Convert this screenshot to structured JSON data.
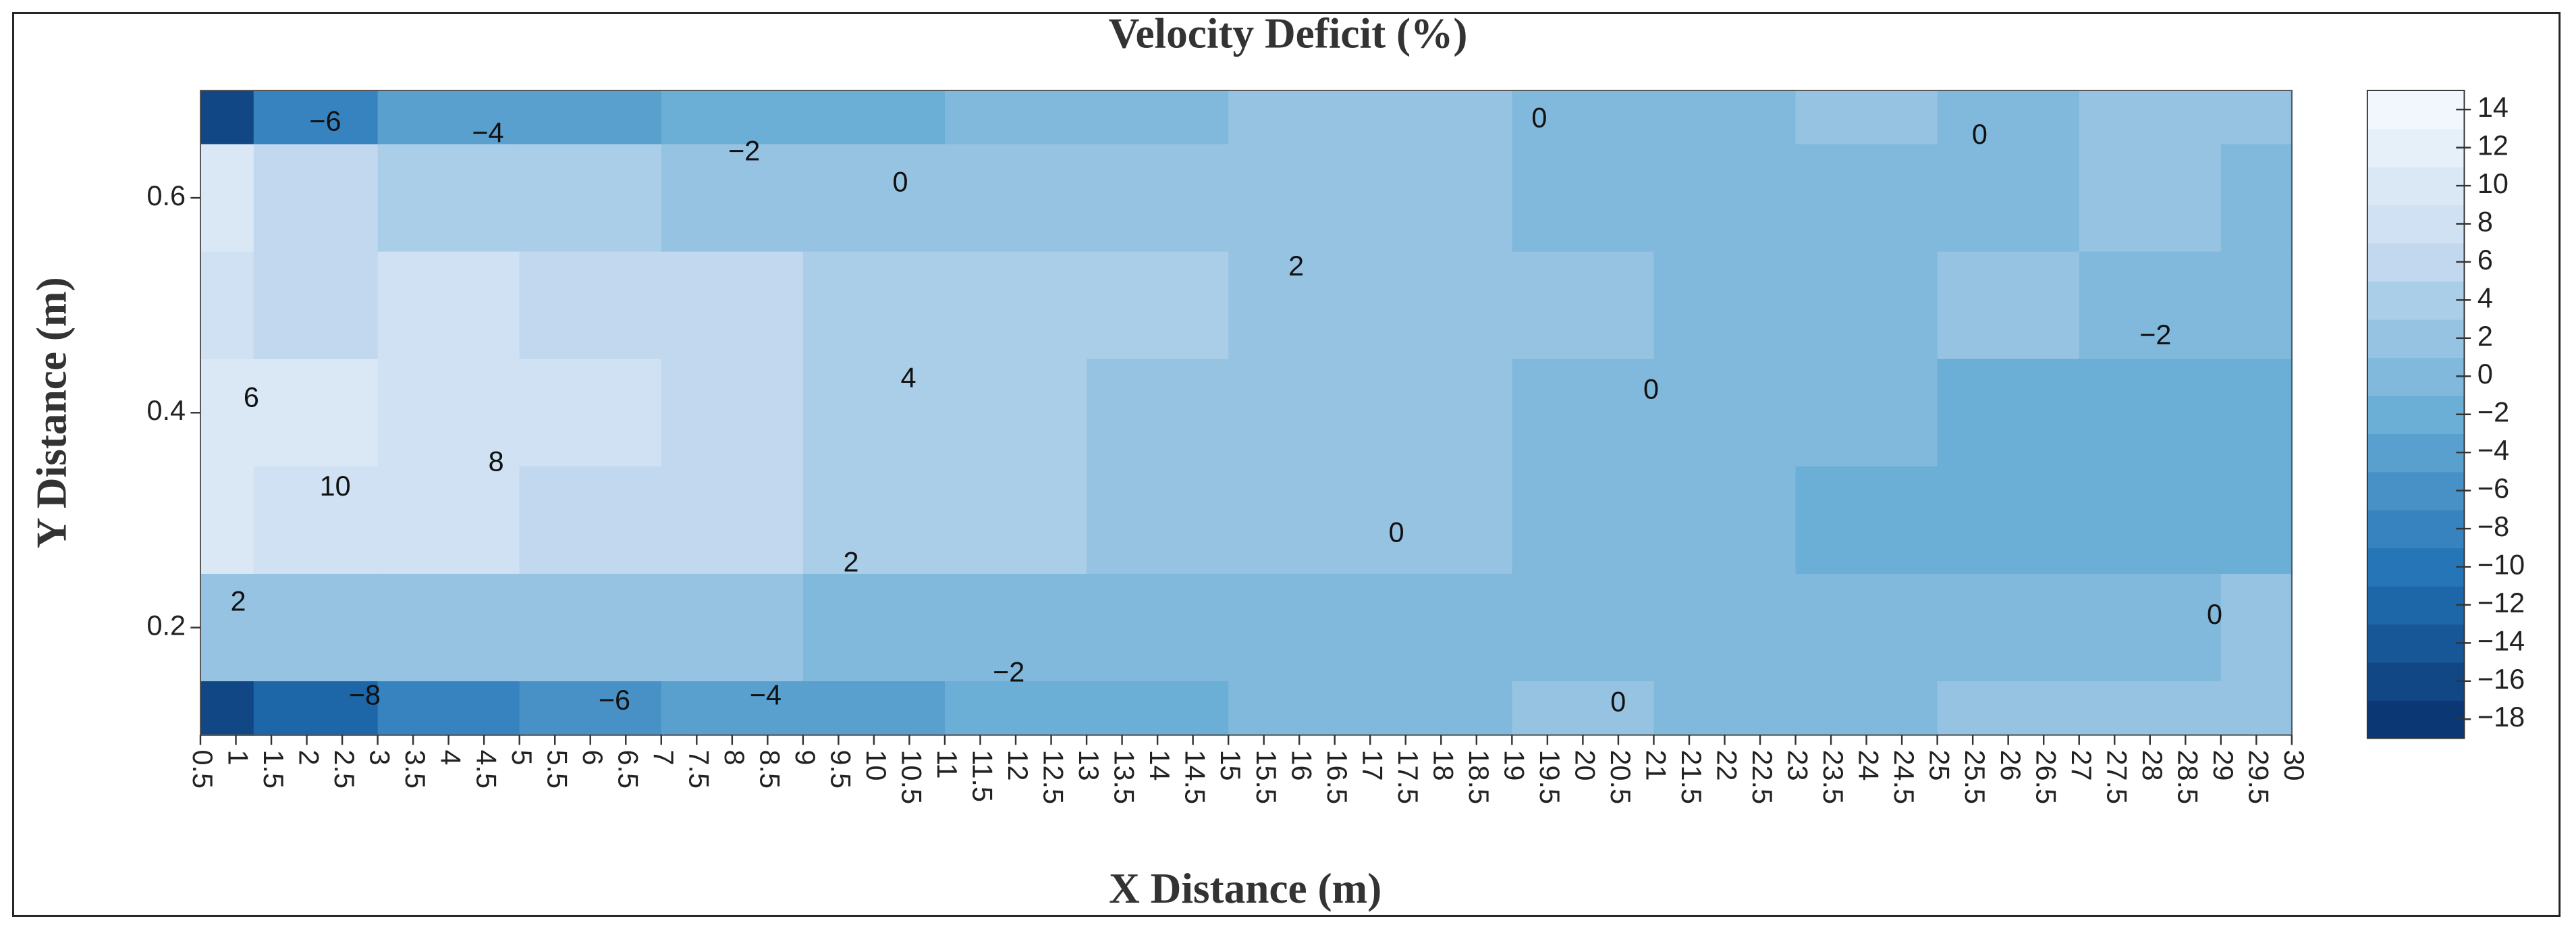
{
  "chart_data": {
    "type": "contour",
    "title": "Velocity Deficit (%)",
    "xlabel": "X Distance (m)",
    "ylabel": "Y Distance (m)",
    "xlim": [
      0.5,
      30
    ],
    "xticks": [
      0.5,
      1,
      1.5,
      2,
      2.5,
      3,
      3.5,
      4,
      4.5,
      5,
      5.5,
      6,
      6.5,
      7,
      7.5,
      8,
      8.5,
      9,
      9.5,
      10,
      10.5,
      11,
      11.5,
      12,
      12.5,
      13,
      13.5,
      14,
      14.5,
      15,
      15.5,
      16,
      16.5,
      17,
      17.5,
      18,
      18.5,
      19,
      19.5,
      20,
      20.5,
      21,
      21.5,
      22,
      22.5,
      23,
      23.5,
      24,
      24.5,
      25,
      25.5,
      26,
      26.5,
      27,
      27.5,
      28,
      28.5,
      29,
      29.5,
      30
    ],
    "ylim": [
      0.1,
      0.7
    ],
    "yticks": [
      0.2,
      0.4,
      0.6
    ],
    "x": [
      0.5,
      2,
      4,
      6,
      8,
      10,
      12,
      14,
      16,
      18,
      20,
      22,
      24,
      26,
      28,
      30
    ],
    "y": [
      0.7,
      0.6,
      0.5,
      0.4,
      0.3,
      0.2,
      0.1
    ],
    "z": [
      [
        -16,
        -8,
        -5,
        -4,
        -3,
        -2,
        -1,
        0,
        1,
        1,
        0,
        0,
        1,
        0,
        1,
        1
      ],
      [
        10,
        6,
        4,
        3,
        2,
        1,
        1,
        1,
        2,
        2,
        0,
        0,
        0,
        0,
        1,
        -1
      ],
      [
        7,
        6,
        7,
        6,
        5,
        4,
        3,
        3,
        2,
        2,
        1,
        0,
        0,
        1,
        0,
        -1
      ],
      [
        9,
        9,
        8,
        7,
        6,
        4,
        3,
        2,
        1,
        1,
        0,
        -1,
        -1,
        -2,
        -2,
        -3
      ],
      [
        9,
        8,
        7,
        6,
        5,
        4,
        3,
        2,
        1,
        1,
        0,
        -1,
        -2,
        -3,
        -2,
        -2
      ],
      [
        2,
        2,
        1,
        1,
        1,
        0,
        0,
        -1,
        -1,
        0,
        0,
        -1,
        -1,
        -1,
        0,
        1
      ],
      [
        -16,
        -12,
        -9,
        -7,
        -5,
        -4,
        -3,
        -2,
        -1,
        0,
        1,
        -1,
        0,
        1,
        2,
        1
      ]
    ],
    "colors": [
      "#08306b",
      "#2171b5",
      "#6baed6",
      "#c6dbef",
      "#f7fbff"
    ],
    "colorbar_lim": [
      -19,
      15
    ],
    "colorbar_ticks": [
      {
        "value": -18,
        "label": "−18"
      },
      {
        "value": -16,
        "label": "−16"
      },
      {
        "value": -14,
        "label": "−14"
      },
      {
        "value": -12,
        "label": "−12"
      },
      {
        "value": -10,
        "label": "−10"
      },
      {
        "value": -8,
        "label": "−8"
      },
      {
        "value": -6,
        "label": "−6"
      },
      {
        "value": -4,
        "label": "−4"
      },
      {
        "value": -2,
        "label": "−2"
      },
      0,
      2,
      4,
      6,
      8,
      10,
      12,
      14
    ],
    "contour_labels": [
      "−6",
      "−4",
      "−2",
      "0",
      "2",
      "0",
      "0",
      "6",
      "4",
      "0",
      "−2",
      "10",
      "8",
      "0",
      "2",
      "2",
      "0",
      "−8",
      "−6",
      "−4",
      "−2",
      "0"
    ]
  }
}
